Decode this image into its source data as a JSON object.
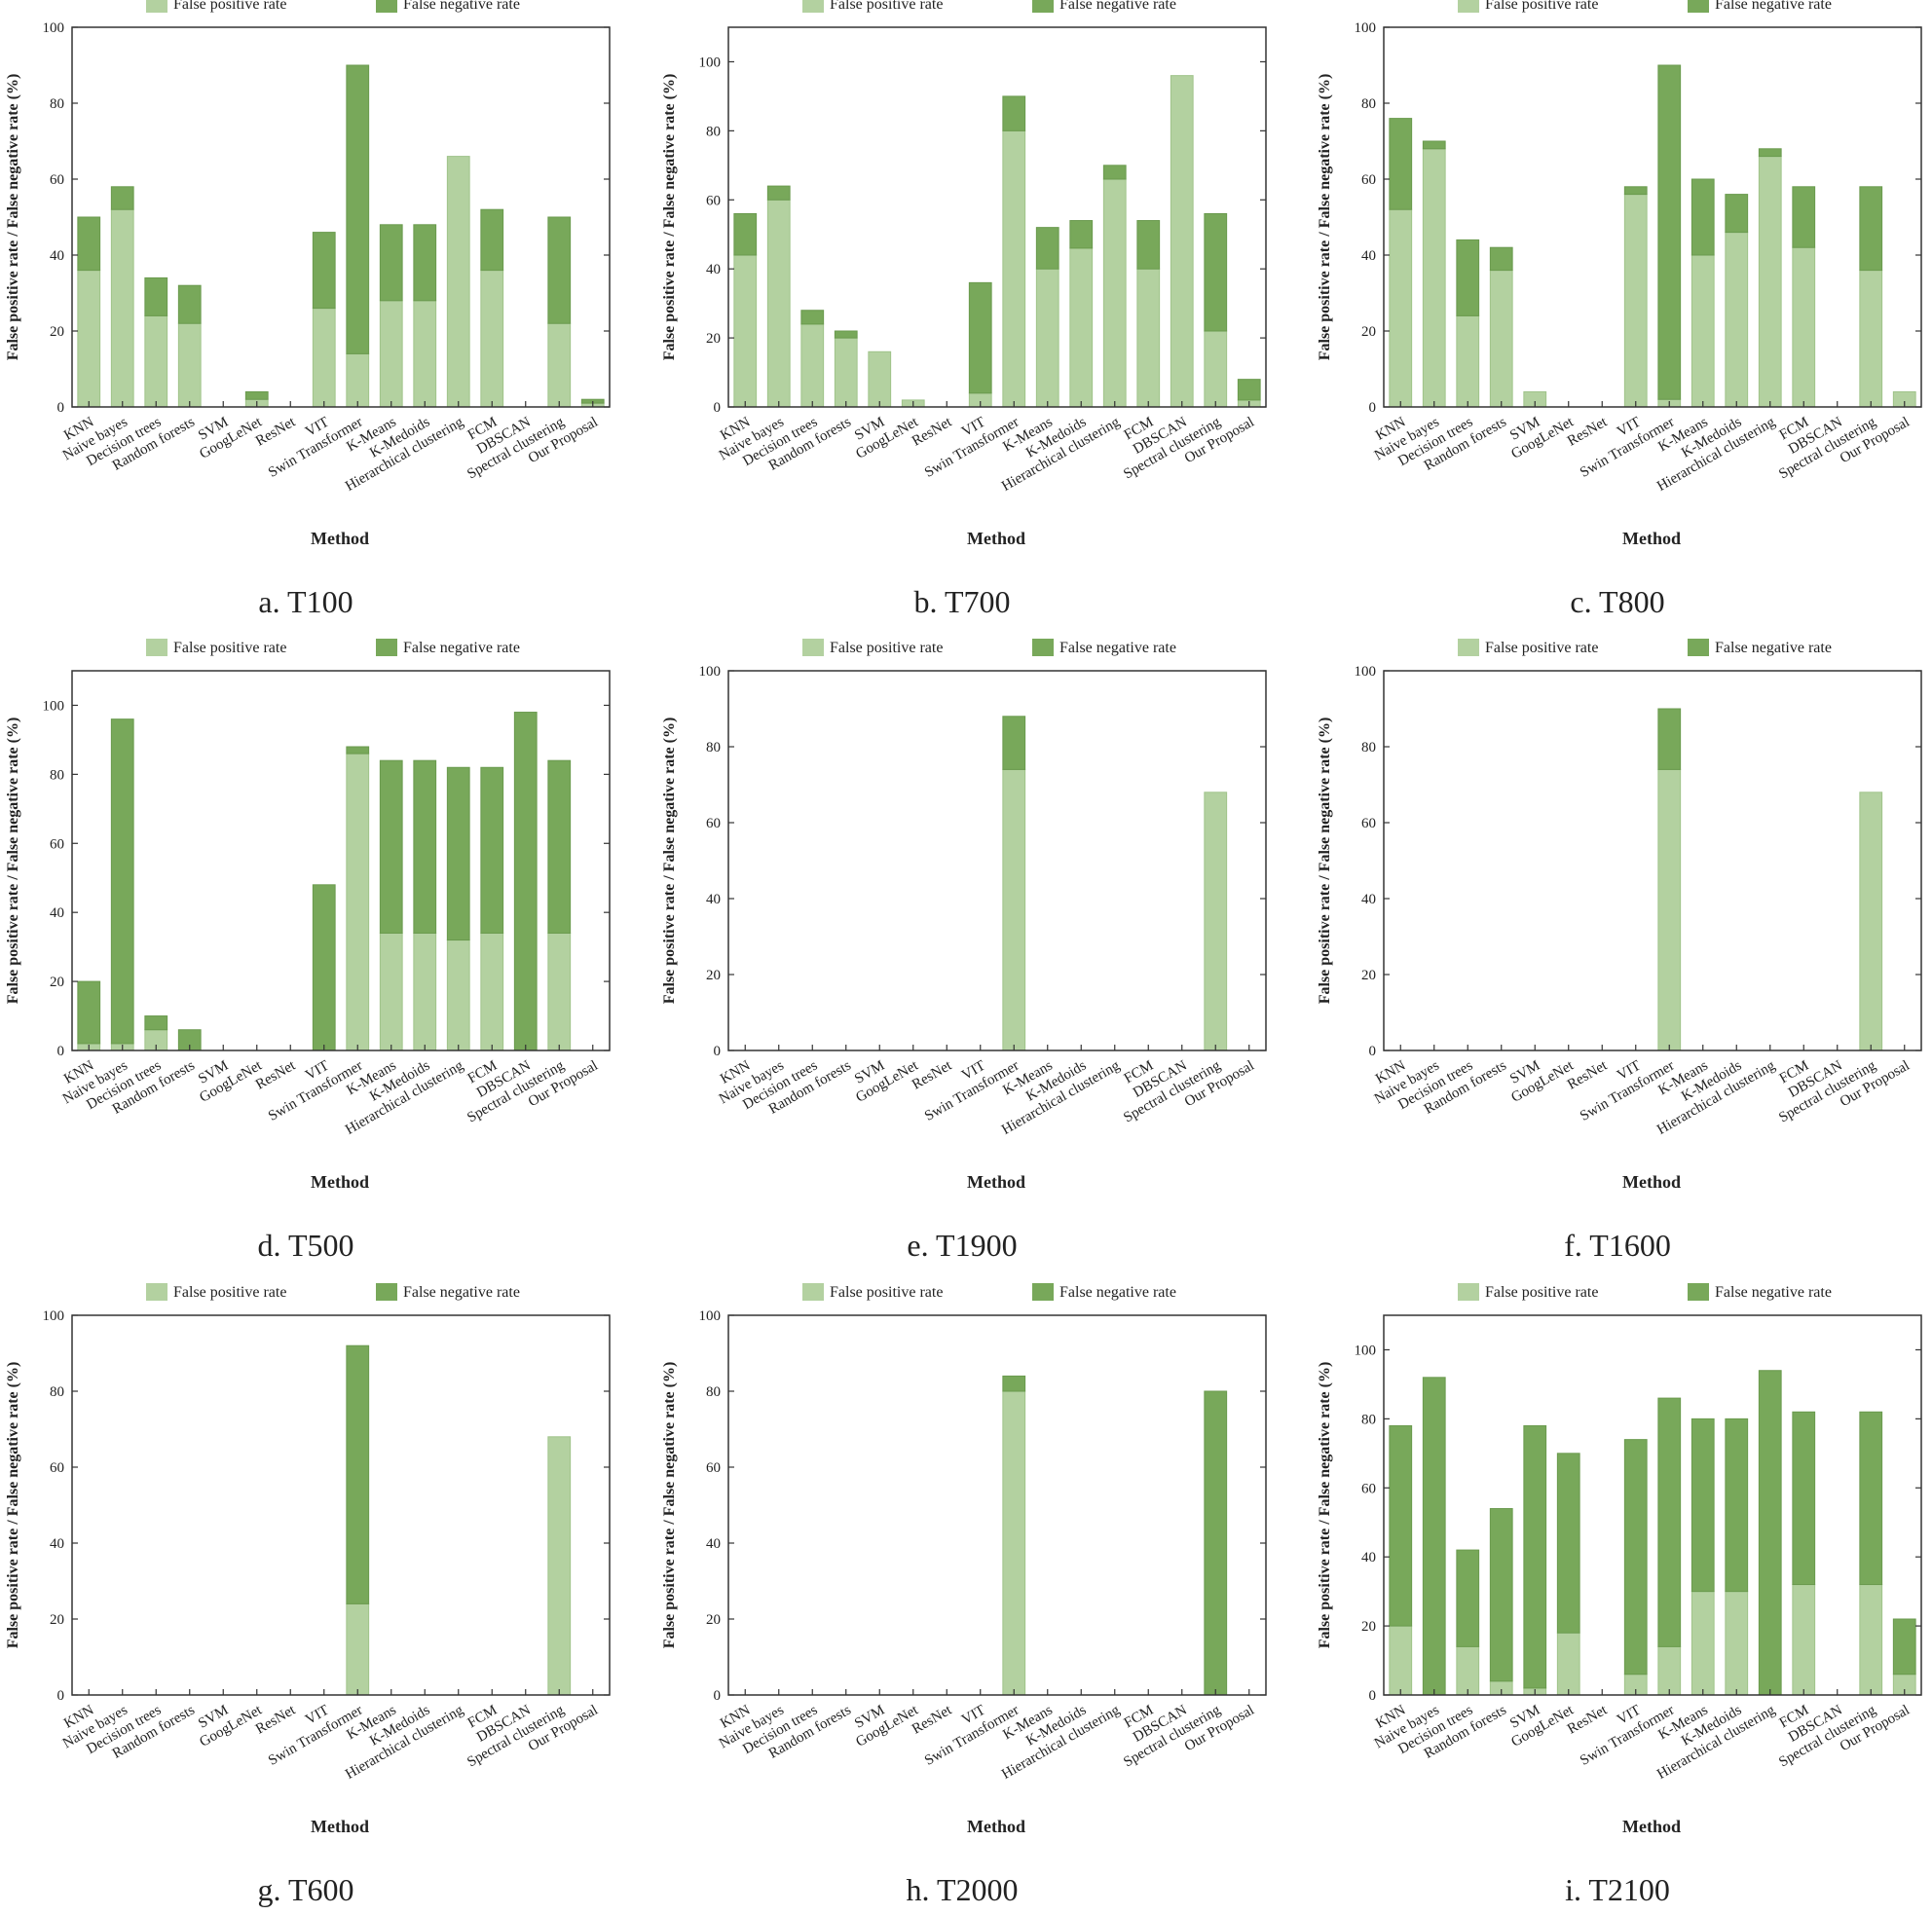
{
  "colors": {
    "fp": "#b3d1a0",
    "fn": "#78a85a",
    "fn_edge": "#6a9a4e",
    "fp_edge": "#9fc38a",
    "axis": "#333333"
  },
  "legend": {
    "fp_label": "False positive rate",
    "fn_label": "False negative rate",
    "placement": "top-center"
  },
  "xlabel": "Method",
  "ylabel": "False positive rate / False negative rate (%)",
  "categories": [
    "KNN",
    "Naive bayes",
    "Decision trees",
    "Random forests",
    "SVM",
    "GoogLeNet",
    "ResNet",
    "VIT",
    "Swin Transformer",
    "K-Means",
    "K-Medoids",
    "Hierarchical clustering",
    "FCM",
    "DBSCAN",
    "Spectral clustering",
    "Our Proposal"
  ],
  "chart_data": [
    {
      "type": "bar",
      "stacked": true,
      "caption": "a. T100",
      "ylim": [
        0,
        100
      ],
      "yticks": [
        0,
        20,
        40,
        60,
        80,
        100
      ],
      "series": [
        {
          "name": "False positive rate",
          "values": [
            36,
            52,
            24,
            22,
            0,
            2,
            0,
            26,
            14,
            28,
            28,
            66,
            36,
            0,
            22,
            1
          ]
        },
        {
          "name": "False negative rate",
          "values": [
            14,
            6,
            10,
            10,
            0,
            2,
            0,
            20,
            76,
            20,
            20,
            0,
            16,
            0,
            28,
            1
          ]
        }
      ]
    },
    {
      "type": "bar",
      "stacked": true,
      "caption": "b. T700",
      "ylim": [
        0,
        110
      ],
      "yticks": [
        0,
        20,
        40,
        60,
        80,
        100
      ],
      "series": [
        {
          "name": "False positive rate",
          "values": [
            44,
            60,
            24,
            20,
            16,
            2,
            0,
            4,
            80,
            40,
            46,
            66,
            40,
            96,
            22,
            2
          ]
        },
        {
          "name": "False negative rate",
          "values": [
            12,
            4,
            4,
            2,
            0,
            0,
            0,
            32,
            10,
            12,
            8,
            4,
            14,
            0,
            34,
            6
          ]
        }
      ]
    },
    {
      "type": "bar",
      "stacked": true,
      "caption": "c. T800",
      "ylim": [
        0,
        100
      ],
      "yticks": [
        0,
        20,
        40,
        60,
        80,
        100
      ],
      "series": [
        {
          "name": "False positive rate",
          "values": [
            52,
            68,
            24,
            36,
            4,
            0,
            0,
            56,
            2,
            40,
            46,
            66,
            42,
            0,
            36,
            4
          ]
        },
        {
          "name": "False negative rate",
          "values": [
            24,
            2,
            20,
            6,
            0,
            0,
            0,
            2,
            88,
            20,
            10,
            2,
            16,
            0,
            22,
            0
          ]
        }
      ]
    },
    {
      "type": "bar",
      "stacked": true,
      "caption": "d. T500",
      "ylim": [
        0,
        110
      ],
      "yticks": [
        0,
        20,
        40,
        60,
        80,
        100
      ],
      "series": [
        {
          "name": "False positive rate",
          "values": [
            2,
            2,
            6,
            0,
            0,
            0,
            0,
            0,
            86,
            34,
            34,
            32,
            34,
            0,
            34,
            0
          ]
        },
        {
          "name": "False negative rate",
          "values": [
            18,
            94,
            4,
            6,
            0,
            0,
            0,
            48,
            2,
            50,
            50,
            50,
            48,
            98,
            50,
            0
          ]
        }
      ]
    },
    {
      "type": "bar",
      "stacked": true,
      "caption": "e. T1900",
      "ylim": [
        0,
        100
      ],
      "yticks": [
        0,
        20,
        40,
        60,
        80,
        100
      ],
      "series": [
        {
          "name": "False positive rate",
          "values": [
            0,
            0,
            0,
            0,
            0,
            0,
            0,
            0,
            74,
            0,
            0,
            0,
            0,
            0,
            68,
            0
          ]
        },
        {
          "name": "False negative rate",
          "values": [
            0,
            0,
            0,
            0,
            0,
            0,
            0,
            0,
            14,
            0,
            0,
            0,
            0,
            0,
            0,
            0
          ]
        }
      ]
    },
    {
      "type": "bar",
      "stacked": true,
      "caption": "f. T1600",
      "ylim": [
        0,
        100
      ],
      "yticks": [
        0,
        20,
        40,
        60,
        80,
        100
      ],
      "series": [
        {
          "name": "False positive rate",
          "values": [
            0,
            0,
            0,
            0,
            0,
            0,
            0,
            0,
            74,
            0,
            0,
            0,
            0,
            0,
            68,
            0
          ]
        },
        {
          "name": "False negative rate",
          "values": [
            0,
            0,
            0,
            0,
            0,
            0,
            0,
            0,
            16,
            0,
            0,
            0,
            0,
            0,
            0,
            0
          ]
        }
      ]
    },
    {
      "type": "bar",
      "stacked": true,
      "caption": "g. T600",
      "ylim": [
        0,
        100
      ],
      "yticks": [
        0,
        20,
        40,
        60,
        80,
        100
      ],
      "series": [
        {
          "name": "False positive rate",
          "values": [
            0,
            0,
            0,
            0,
            0,
            0,
            0,
            0,
            24,
            0,
            0,
            0,
            0,
            0,
            68,
            0
          ]
        },
        {
          "name": "False negative rate",
          "values": [
            0,
            0,
            0,
            0,
            0,
            0,
            0,
            0,
            68,
            0,
            0,
            0,
            0,
            0,
            0,
            0
          ]
        }
      ]
    },
    {
      "type": "bar",
      "stacked": true,
      "caption": "h. T2000",
      "ylim": [
        0,
        100
      ],
      "yticks": [
        0,
        20,
        40,
        60,
        80,
        100
      ],
      "series": [
        {
          "name": "False positive rate",
          "values": [
            0,
            0,
            0,
            0,
            0,
            0,
            0,
            0,
            80,
            0,
            0,
            0,
            0,
            0,
            0,
            0
          ]
        },
        {
          "name": "False negative rate",
          "values": [
            0,
            0,
            0,
            0,
            0,
            0,
            0,
            0,
            4,
            0,
            0,
            0,
            0,
            0,
            80,
            0
          ]
        }
      ]
    },
    {
      "type": "bar",
      "stacked": true,
      "caption": "i. T2100",
      "ylim": [
        0,
        110
      ],
      "yticks": [
        0,
        20,
        40,
        60,
        80,
        100
      ],
      "series": [
        {
          "name": "False positive rate",
          "values": [
            20,
            0,
            14,
            4,
            2,
            18,
            0,
            6,
            14,
            30,
            30,
            0,
            32,
            0,
            32,
            6
          ]
        },
        {
          "name": "False negative rate",
          "values": [
            58,
            92,
            28,
            50,
            76,
            52,
            0,
            68,
            72,
            50,
            50,
            94,
            50,
            0,
            50,
            16
          ]
        }
      ]
    }
  ]
}
